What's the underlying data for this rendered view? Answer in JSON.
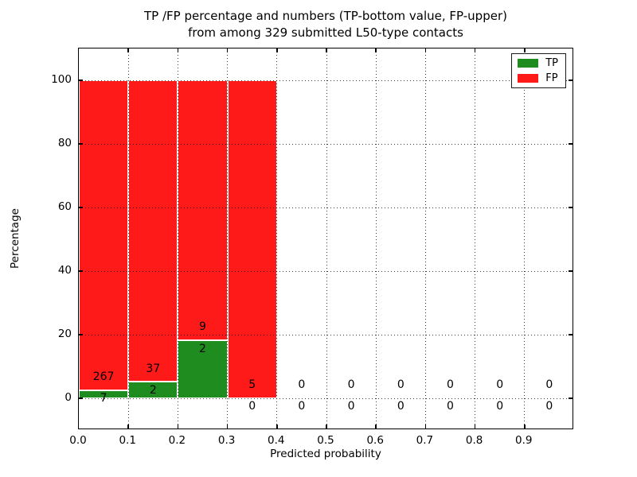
{
  "figure": {
    "title_line1": "TP /FP percentage and numbers (TP-bottom value, FP-upper)",
    "title_line2": "from among 329 submitted L50-type contacts",
    "xlabel": "Predicted probability",
    "ylabel": "Percentage"
  },
  "chart_data": {
    "type": "bar",
    "subtype": "stacked-percentage-histogram",
    "title": "TP /FP percentage and numbers (TP-bottom value, FP-upper) from among 329 submitted L50-type contacts",
    "xlabel": "Predicted probability",
    "ylabel": "Percentage",
    "total_contacts": 329,
    "xlim": [
      0.0,
      1.0
    ],
    "ylim": [
      -10,
      110
    ],
    "grid": true,
    "x_tick_labels": [
      "0.0",
      "0.1",
      "0.2",
      "0.3",
      "0.4",
      "0.5",
      "0.6",
      "0.7",
      "0.8",
      "0.9"
    ],
    "y_tick_values": [
      0,
      20,
      40,
      60,
      80,
      100
    ],
    "y_tick_labels": [
      "0",
      "20",
      "40",
      "60",
      "80",
      "100"
    ],
    "legend": {
      "position": "upper right",
      "entries": [
        {
          "label": "TP",
          "color": "#1e8c1e"
        },
        {
          "label": "FP",
          "color": "#ff1a1a"
        }
      ]
    },
    "colors": {
      "tp": "#1e8c1e",
      "fp": "#ff1a1a",
      "bar_edge": "#ffffff",
      "grid": "#000000",
      "frame": "#000000"
    },
    "bins": [
      {
        "x_start": 0.0,
        "x_end": 0.1,
        "tp_count": 7,
        "fp_count": 267,
        "tp_pct": 2.55,
        "fp_pct": 97.45
      },
      {
        "x_start": 0.1,
        "x_end": 0.2,
        "tp_count": 2,
        "fp_count": 37,
        "tp_pct": 5.13,
        "fp_pct": 94.87
      },
      {
        "x_start": 0.2,
        "x_end": 0.3,
        "tp_count": 2,
        "fp_count": 9,
        "tp_pct": 18.18,
        "fp_pct": 81.82
      },
      {
        "x_start": 0.3,
        "x_end": 0.4,
        "tp_count": 0,
        "fp_count": 5,
        "tp_pct": 0,
        "fp_pct": 100
      },
      {
        "x_start": 0.4,
        "x_end": 0.5,
        "tp_count": 0,
        "fp_count": 0,
        "tp_pct": 0,
        "fp_pct": 0
      },
      {
        "x_start": 0.5,
        "x_end": 0.6,
        "tp_count": 0,
        "fp_count": 0,
        "tp_pct": 0,
        "fp_pct": 0
      },
      {
        "x_start": 0.6,
        "x_end": 0.7,
        "tp_count": 0,
        "fp_count": 0,
        "tp_pct": 0,
        "fp_pct": 0
      },
      {
        "x_start": 0.7,
        "x_end": 0.8,
        "tp_count": 0,
        "fp_count": 0,
        "tp_pct": 0,
        "fp_pct": 0
      },
      {
        "x_start": 0.8,
        "x_end": 0.9,
        "tp_count": 0,
        "fp_count": 0,
        "tp_pct": 0,
        "fp_pct": 0
      },
      {
        "x_start": 0.9,
        "x_end": 1.0,
        "tp_count": 0,
        "fp_count": 0,
        "tp_pct": 0,
        "fp_pct": 0
      }
    ]
  }
}
